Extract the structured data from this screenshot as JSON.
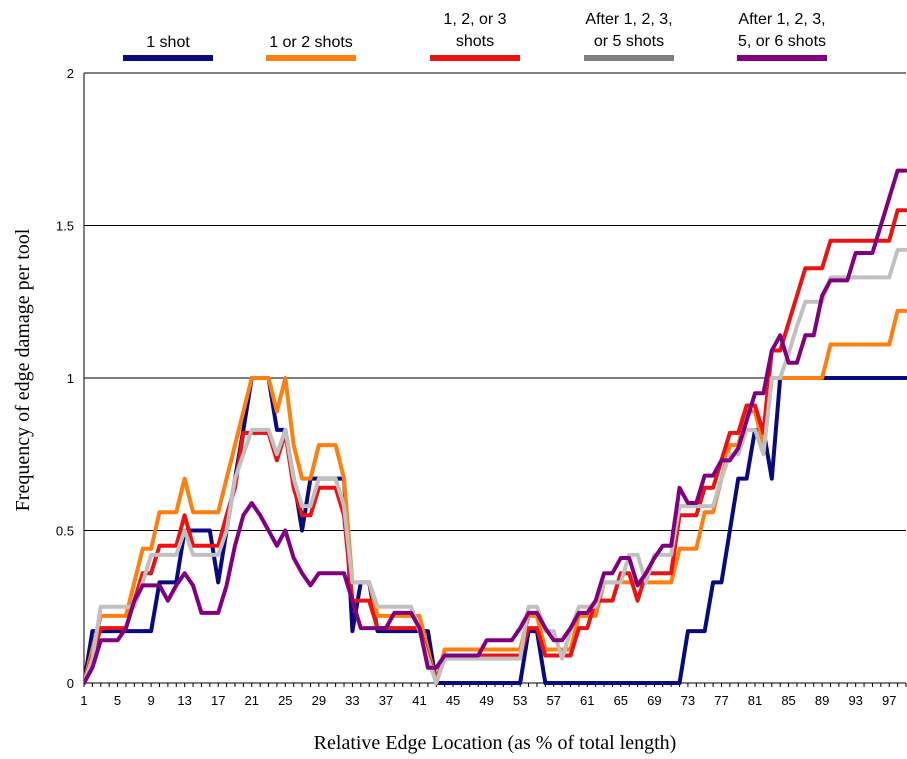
{
  "chart_data": {
    "type": "line",
    "title": "",
    "xlabel": "Relative Edge Location (as % of total length)",
    "ylabel": "Frequency of edge damage per tool",
    "xlim": [
      1,
      99
    ],
    "ylim": [
      0,
      2
    ],
    "x_tick_labels": [
      "1",
      "5",
      "9",
      "13",
      "17",
      "21",
      "25",
      "29",
      "33",
      "37",
      "41",
      "45",
      "49",
      "53",
      "57",
      "61",
      "65",
      "69",
      "73",
      "77",
      "81",
      "85",
      "89",
      "93",
      "97"
    ],
    "y_tick_labels": [
      "0",
      "0.5",
      "1",
      "1.5",
      "2"
    ],
    "grid": "horizontal",
    "legend_position": "top",
    "x": [
      1,
      2,
      3,
      4,
      5,
      6,
      7,
      8,
      9,
      10,
      11,
      12,
      13,
      14,
      15,
      16,
      17,
      18,
      19,
      20,
      21,
      22,
      23,
      24,
      25,
      26,
      27,
      28,
      29,
      30,
      31,
      32,
      33,
      34,
      35,
      36,
      37,
      38,
      39,
      40,
      41,
      42,
      43,
      44,
      45,
      46,
      47,
      48,
      49,
      50,
      51,
      52,
      53,
      54,
      55,
      56,
      57,
      58,
      59,
      60,
      61,
      62,
      63,
      64,
      65,
      66,
      67,
      68,
      69,
      70,
      71,
      72,
      73,
      74,
      75,
      76,
      77,
      78,
      79,
      80,
      81,
      82,
      83,
      84,
      85,
      86,
      87,
      88,
      89,
      90,
      91,
      92,
      93,
      94,
      95,
      96,
      97,
      98,
      99
    ],
    "series": [
      {
        "name": "1 shot",
        "color": "#0a0a80",
        "values": [
          0,
          0.17,
          0.17,
          0.17,
          0.17,
          0.17,
          0.17,
          0.17,
          0.17,
          0.33,
          0.33,
          0.33,
          0.5,
          0.5,
          0.5,
          0.5,
          0.33,
          0.5,
          0.67,
          0.83,
          1,
          1,
          1,
          0.83,
          0.83,
          0.67,
          0.5,
          0.67,
          0.67,
          0.67,
          0.67,
          0.67,
          0.17,
          0.33,
          0.33,
          0.17,
          0.17,
          0.17,
          0.17,
          0.17,
          0.17,
          0.17,
          0,
          0,
          0,
          0,
          0,
          0,
          0,
          0,
          0,
          0,
          0,
          0.17,
          0.17,
          0,
          0,
          0,
          0,
          0,
          0,
          0,
          0,
          0,
          0,
          0,
          0,
          0,
          0,
          0,
          0,
          0,
          0.17,
          0.17,
          0.17,
          0.33,
          0.33,
          0.5,
          0.67,
          0.67,
          0.83,
          0.83,
          0.67,
          1,
          1,
          1,
          1,
          1,
          1,
          1,
          1,
          1,
          1,
          1,
          1,
          1,
          1,
          1,
          1
        ]
      },
      {
        "name": "1 or 2 shots",
        "color": "#ff7f0e",
        "values": [
          0,
          0.11,
          0.22,
          0.22,
          0.22,
          0.22,
          0.33,
          0.44,
          0.44,
          0.56,
          0.56,
          0.56,
          0.67,
          0.56,
          0.56,
          0.56,
          0.56,
          0.67,
          0.78,
          0.89,
          1,
          1,
          1,
          0.89,
          1,
          0.78,
          0.67,
          0.67,
          0.78,
          0.78,
          0.78,
          0.67,
          0.33,
          0.33,
          0.33,
          0.22,
          0.22,
          0.22,
          0.22,
          0.22,
          0.22,
          0.11,
          0,
          0.11,
          0.11,
          0.11,
          0.11,
          0.11,
          0.11,
          0.11,
          0.11,
          0.11,
          0.11,
          0.22,
          0.22,
          0.11,
          0.11,
          0.11,
          0.11,
          0.22,
          0.22,
          0.22,
          0.33,
          0.33,
          0.33,
          0.33,
          0.33,
          0.33,
          0.33,
          0.33,
          0.33,
          0.44,
          0.44,
          0.44,
          0.56,
          0.56,
          0.67,
          0.78,
          0.78,
          0.89,
          0.89,
          0.78,
          1,
          1,
          1,
          1,
          1,
          1,
          1,
          1.11,
          1.11,
          1.11,
          1.11,
          1.11,
          1.11,
          1.11,
          1.11,
          1.22,
          1.22
        ]
      },
      {
        "name": "1, 2, or 3 shots",
        "color": "#ee1111",
        "values": [
          0,
          0.09,
          0.18,
          0.18,
          0.18,
          0.18,
          0.27,
          0.36,
          0.36,
          0.45,
          0.45,
          0.45,
          0.55,
          0.45,
          0.45,
          0.45,
          0.45,
          0.55,
          0.64,
          0.82,
          0.82,
          0.82,
          0.82,
          0.73,
          0.82,
          0.64,
          0.55,
          0.55,
          0.64,
          0.64,
          0.64,
          0.55,
          0.27,
          0.27,
          0.27,
          0.18,
          0.18,
          0.18,
          0.18,
          0.18,
          0.18,
          0.09,
          0,
          0.09,
          0.09,
          0.09,
          0.09,
          0.09,
          0.09,
          0.09,
          0.09,
          0.09,
          0.09,
          0.18,
          0.18,
          0.09,
          0.09,
          0.09,
          0.09,
          0.18,
          0.18,
          0.27,
          0.27,
          0.27,
          0.36,
          0.36,
          0.27,
          0.36,
          0.36,
          0.36,
          0.36,
          0.55,
          0.55,
          0.55,
          0.64,
          0.64,
          0.73,
          0.82,
          0.82,
          0.91,
          0.91,
          0.82,
          1.09,
          1.09,
          1.18,
          1.27,
          1.36,
          1.36,
          1.36,
          1.45,
          1.45,
          1.45,
          1.45,
          1.45,
          1.45,
          1.45,
          1.45,
          1.55,
          1.55
        ]
      },
      {
        "name": "After 1, 2, 3, or 5 shots",
        "color": "#c0c0c0",
        "legend_color": "#808080",
        "values": [
          0,
          0.08,
          0.25,
          0.25,
          0.25,
          0.25,
          0.25,
          0.33,
          0.42,
          0.42,
          0.42,
          0.42,
          0.5,
          0.42,
          0.42,
          0.42,
          0.42,
          0.5,
          0.67,
          0.75,
          0.83,
          0.83,
          0.83,
          0.75,
          0.83,
          0.67,
          0.58,
          0.58,
          0.67,
          0.67,
          0.67,
          0.58,
          0.33,
          0.33,
          0.33,
          0.25,
          0.25,
          0.25,
          0.25,
          0.25,
          0.17,
          0.08,
          0,
          0.08,
          0.08,
          0.08,
          0.08,
          0.08,
          0.08,
          0.08,
          0.08,
          0.08,
          0.08,
          0.25,
          0.25,
          0.17,
          0.17,
          0.08,
          0.17,
          0.25,
          0.25,
          0.25,
          0.33,
          0.33,
          0.33,
          0.42,
          0.42,
          0.33,
          0.42,
          0.42,
          0.42,
          0.58,
          0.58,
          0.58,
          0.58,
          0.58,
          0.67,
          0.75,
          0.75,
          0.83,
          0.83,
          0.75,
          1,
          1,
          1.08,
          1.17,
          1.25,
          1.25,
          1.25,
          1.33,
          1.33,
          1.33,
          1.33,
          1.33,
          1.33,
          1.33,
          1.33,
          1.42,
          1.42
        ]
      },
      {
        "name": "After 1, 2, 3, 5, or 6 shots",
        "color": "#800080",
        "values": [
          0,
          0.05,
          0.14,
          0.14,
          0.14,
          0.18,
          0.27,
          0.32,
          0.32,
          0.32,
          0.27,
          0.32,
          0.36,
          0.32,
          0.23,
          0.23,
          0.23,
          0.32,
          0.45,
          0.55,
          0.59,
          0.55,
          0.5,
          0.45,
          0.5,
          0.41,
          0.36,
          0.32,
          0.36,
          0.36,
          0.36,
          0.36,
          0.27,
          0.18,
          0.18,
          0.18,
          0.18,
          0.23,
          0.23,
          0.23,
          0.18,
          0.05,
          0.05,
          0.09,
          0.09,
          0.09,
          0.09,
          0.09,
          0.14,
          0.14,
          0.14,
          0.14,
          0.18,
          0.23,
          0.23,
          0.18,
          0.14,
          0.14,
          0.18,
          0.23,
          0.23,
          0.27,
          0.36,
          0.36,
          0.41,
          0.41,
          0.32,
          0.36,
          0.41,
          0.45,
          0.45,
          0.64,
          0.59,
          0.59,
          0.68,
          0.68,
          0.73,
          0.73,
          0.77,
          0.86,
          0.95,
          0.95,
          1.09,
          1.14,
          1.05,
          1.05,
          1.14,
          1.14,
          1.27,
          1.32,
          1.32,
          1.32,
          1.41,
          1.41,
          1.41,
          1.5,
          1.59,
          1.68,
          1.68
        ]
      }
    ],
    "legend": [
      {
        "label": "1 shot"
      },
      {
        "label": "1 or 2 shots"
      },
      {
        "label": "1, 2, or 3 shots"
      },
      {
        "label": "After 1, 2, 3, or 5 shots"
      },
      {
        "label": "After 1, 2, 3, 5, or 6 shots"
      }
    ]
  }
}
